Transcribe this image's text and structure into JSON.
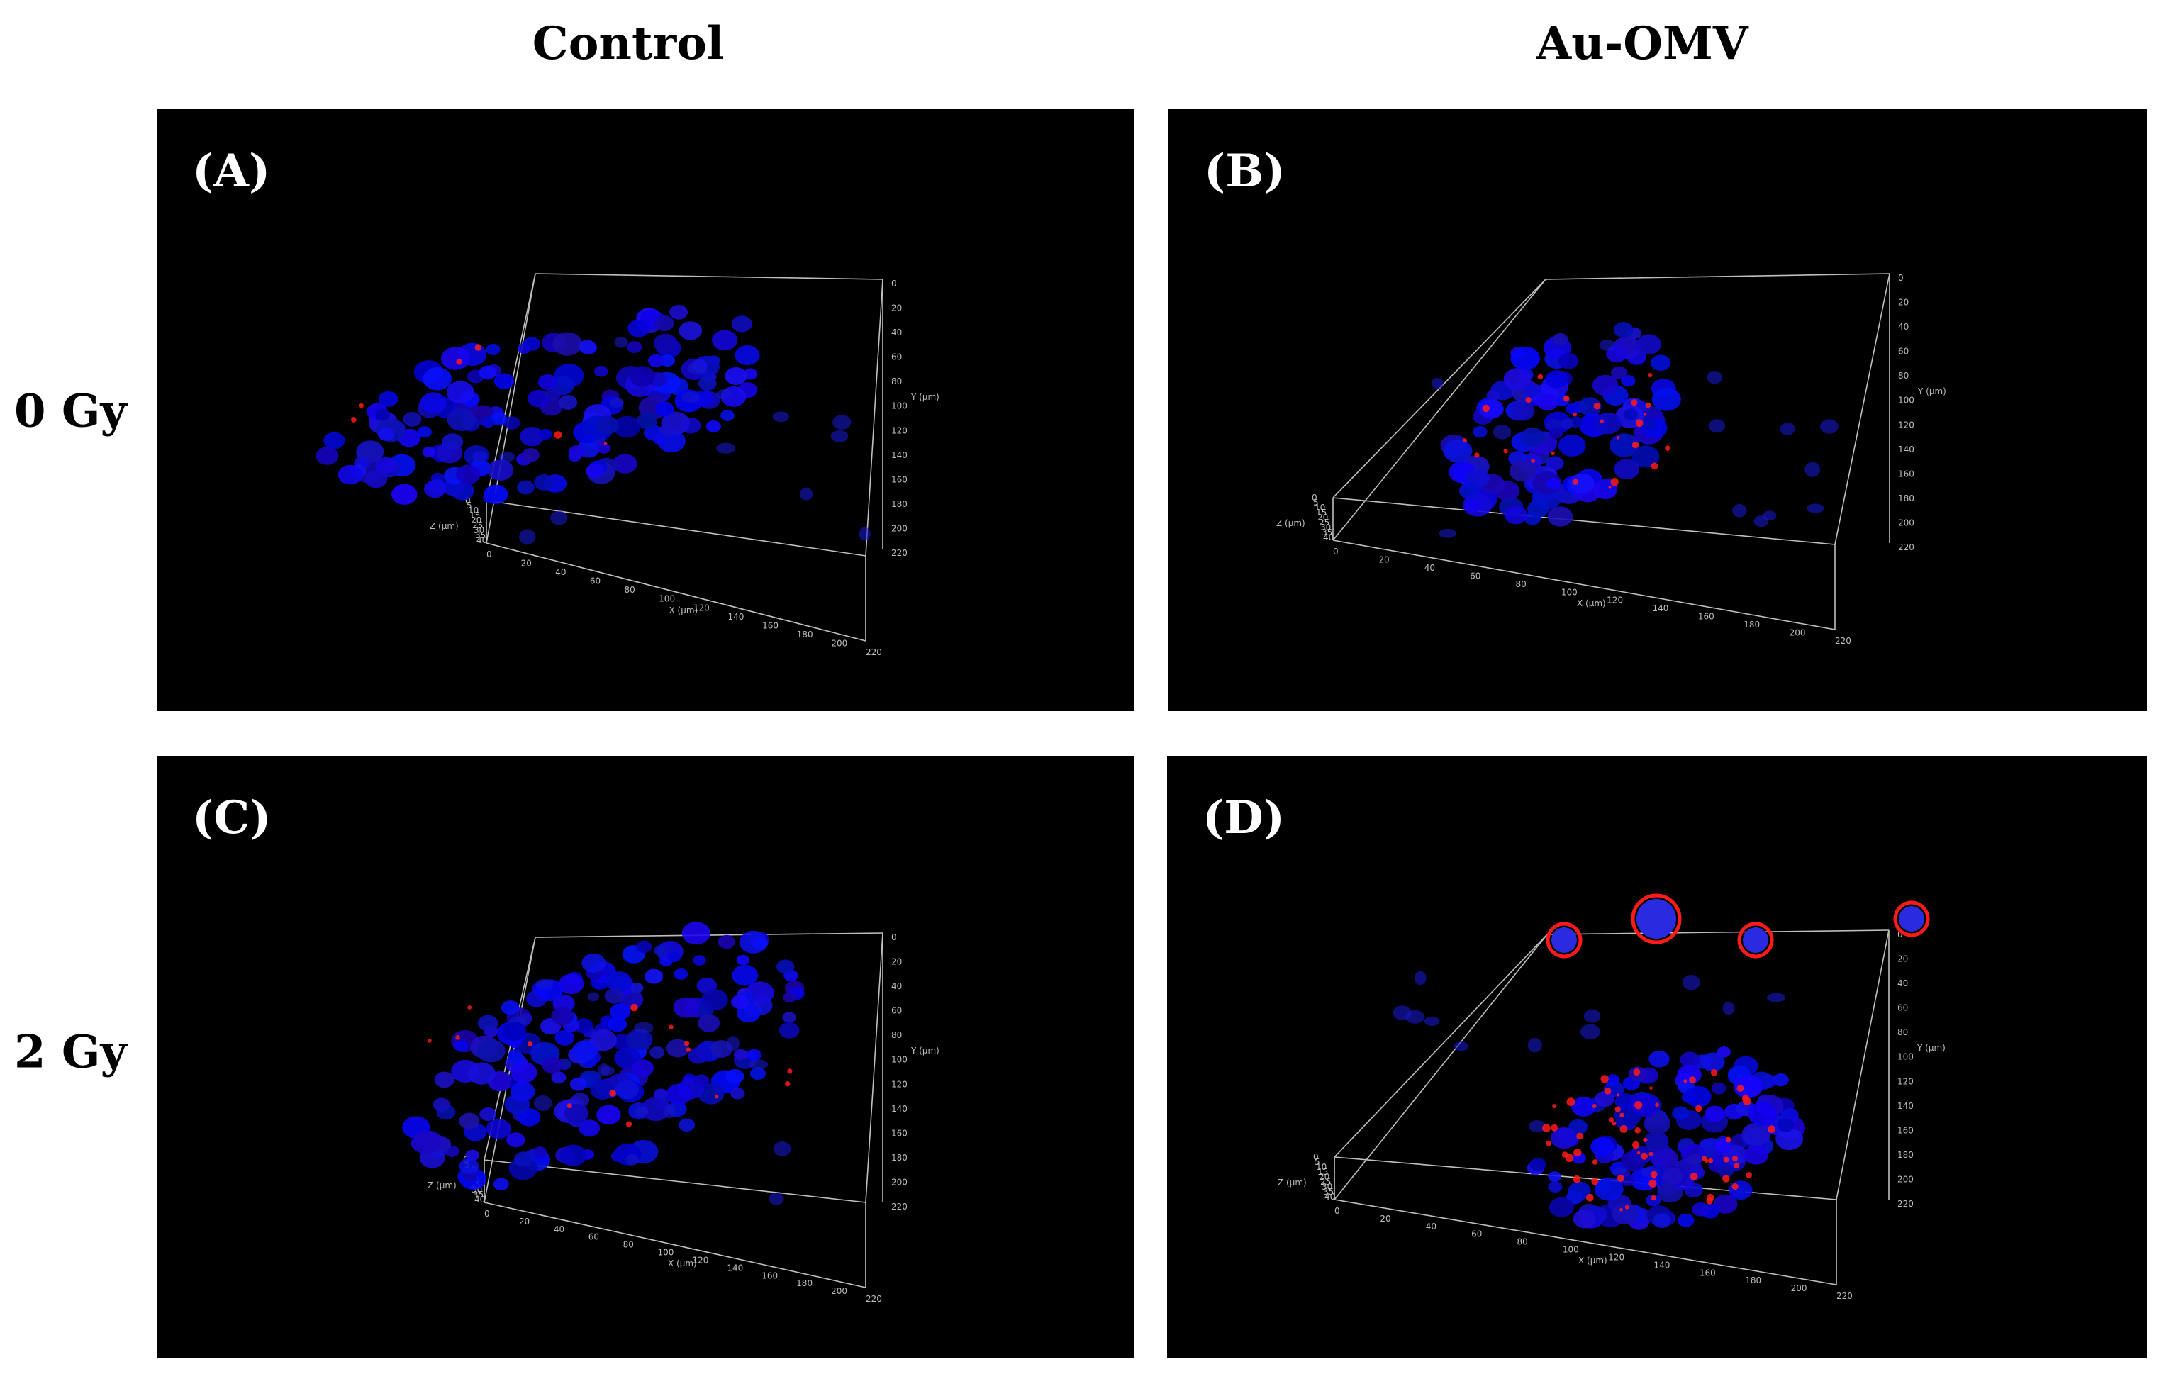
{
  "figure": {
    "columns": [
      "Control",
      "Au-OMV"
    ],
    "rows": [
      "0 Gy",
      "2 Gy"
    ],
    "panels": [
      {
        "id": "A",
        "label": "(A)",
        "condition": "Control",
        "dose": "0 Gy"
      },
      {
        "id": "B",
        "label": "(B)",
        "condition": "Au-OMV",
        "dose": "0 Gy"
      },
      {
        "id": "C",
        "label": "(C)",
        "condition": "Control",
        "dose": "2 Gy"
      },
      {
        "id": "D",
        "label": "(D)",
        "condition": "Au-OMV",
        "dose": "2 Gy"
      }
    ],
    "axes": {
      "x_label": "X (µm)",
      "y_label": "Y (µm)",
      "z_label": "Z (µm)",
      "x_ticks": [
        "0",
        "20",
        "40",
        "60",
        "80",
        "100",
        "120",
        "140",
        "160",
        "180",
        "200",
        "220"
      ],
      "y_ticks": [
        "0",
        "20",
        "40",
        "60",
        "80",
        "100",
        "120",
        "140",
        "160",
        "180",
        "200",
        "220"
      ],
      "z_ticks": [
        "0",
        "5",
        "10",
        "15",
        "20",
        "25",
        "30",
        "35",
        "40"
      ]
    },
    "colors": {
      "nuclei": "#1a1aff",
      "nanoparticles": "#ff1a1a",
      "background": "#000000",
      "box": "#bfbfbf"
    }
  }
}
